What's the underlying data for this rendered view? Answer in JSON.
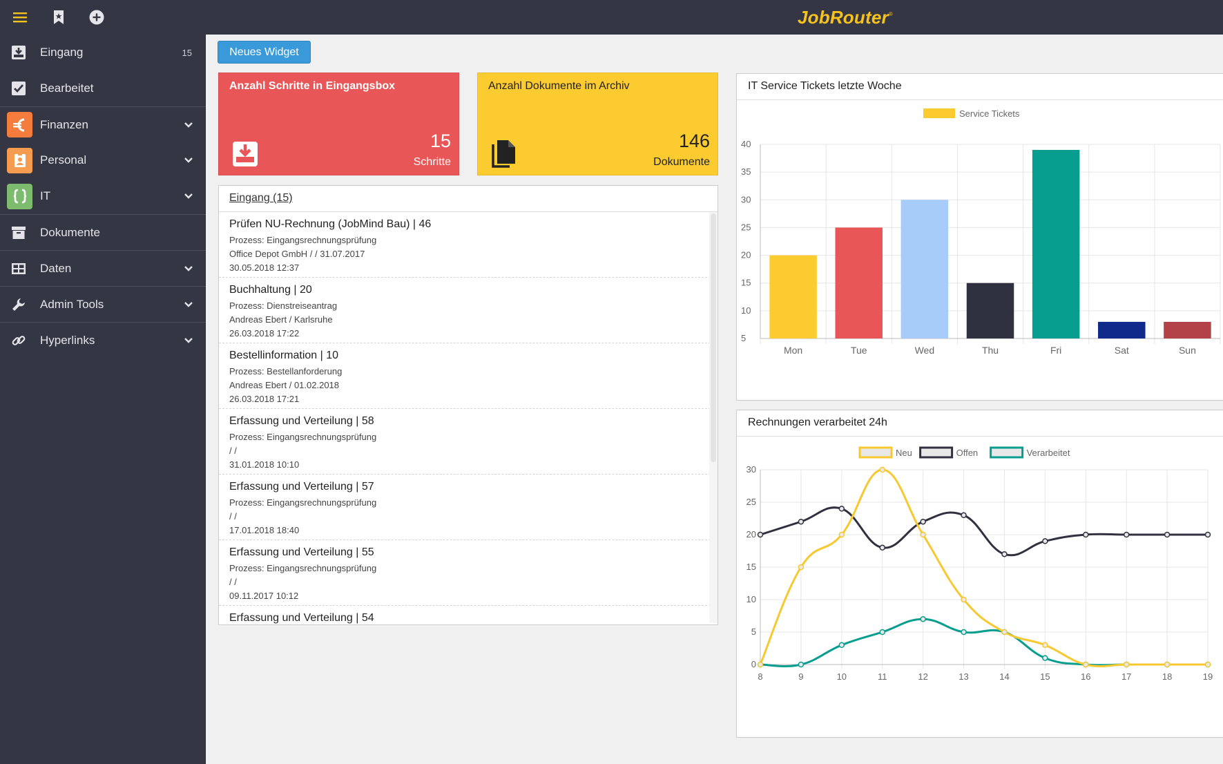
{
  "brand": {
    "name": "JobRouter",
    "mark": "®",
    "color": "#f6c21c"
  },
  "topbar": {
    "icons": [
      "hamburger-icon",
      "bookmark-icon",
      "add-circle-icon"
    ]
  },
  "sidebar": {
    "items": [
      {
        "label": "Eingang",
        "count": "15",
        "icon": "inbox-download-icon"
      },
      {
        "label": "Bearbeitet",
        "icon": "checkbox-checked-icon"
      },
      {
        "label": "Finanzen",
        "icon": "euro-icon",
        "color": "#f47c3c"
      },
      {
        "label": "Personal",
        "icon": "badge-icon",
        "color": "#f59c51"
      },
      {
        "label": "IT",
        "icon": "braces-icon",
        "color": "#7dbb6e"
      },
      {
        "label": "Dokumente",
        "icon": "archive-box-icon"
      },
      {
        "label": "Daten",
        "icon": "table-icon"
      },
      {
        "label": "Admin Tools",
        "icon": "wrench-icon"
      },
      {
        "label": "Hyperlinks",
        "icon": "link-icon"
      }
    ]
  },
  "main": {
    "new_widget_label": "Neues Widget",
    "tiles": [
      {
        "title": "Anzahl Schritte in Eingangsbox",
        "value": "15",
        "unit": "Schritte",
        "color": "#e85657",
        "icon": "inbox-download-icon"
      },
      {
        "title": "Anzahl Dokumente im Archiv",
        "value": "146",
        "unit": "Dokumente",
        "color": "#fccb2f",
        "icon": "documents-icon"
      }
    ],
    "inbox": {
      "title": "Eingang (15)",
      "entries": [
        {
          "title": "Prüfen NU-Rechnung (JobMind Bau) | 46",
          "process": "Prozess: Eingangsrechnungsprüfung",
          "detail": "Office Depot GmbH / / 31.07.2017",
          "date": "30.05.2018 12:37"
        },
        {
          "title": "Buchhaltung | 20",
          "process": "Prozess: Dienstreiseantrag",
          "detail": "Andreas Ebert / Karlsruhe",
          "date": "26.03.2018 17:22"
        },
        {
          "title": "Bestellinformation | 10",
          "process": "Prozess: Bestellanforderung",
          "detail": "Andreas Ebert / 01.02.2018",
          "date": "26.03.2018 17:21"
        },
        {
          "title": "Erfassung und Verteilung | 58",
          "process": "Prozess: Eingangsrechnungsprüfung",
          "detail": "/ /",
          "date": "31.01.2018 10:10"
        },
        {
          "title": "Erfassung und Verteilung | 57",
          "process": "Prozess: Eingangsrechnungsprüfung",
          "detail": "/ /",
          "date": "17.01.2018 18:40"
        },
        {
          "title": "Erfassung und Verteilung | 55",
          "process": "Prozess: Eingangsrechnungsprüfung",
          "detail": "/ /",
          "date": "09.11.2017 10:12"
        },
        {
          "title": "Erfassung und Verteilung | 54",
          "process": "",
          "detail": "",
          "date": ""
        }
      ]
    },
    "panels": {
      "tickets_title": "IT Service Tickets letzte Woche",
      "invoices_title": "Rechnungen verarbeitet 24h"
    }
  },
  "chart_data": [
    {
      "type": "bar",
      "title": "IT Service Tickets letzte Woche",
      "categories": [
        "Mon",
        "Tue",
        "Wed",
        "Thu",
        "Fri",
        "Sat",
        "Sun"
      ],
      "series": [
        {
          "name": "Service Tickets",
          "values": [
            20,
            25,
            30,
            15,
            39,
            8,
            8
          ]
        }
      ],
      "bar_colors": [
        "#fccb2f",
        "#e85657",
        "#a8ccfa",
        "#2f3140",
        "#079e8f",
        "#102a8c",
        "#b24248"
      ],
      "legend_color": "#fccb2f",
      "ylim": [
        5,
        40
      ],
      "yticks": [
        5,
        10,
        15,
        20,
        25,
        30,
        35,
        40
      ],
      "grid": true,
      "legend": "top"
    },
    {
      "type": "line",
      "title": "Rechnungen verarbeitet 24h",
      "x": [
        8,
        9,
        10,
        11,
        12,
        13,
        14,
        15,
        16,
        17,
        18,
        19
      ],
      "series": [
        {
          "name": "Neu",
          "color": "#f7c832",
          "values": [
            0,
            15,
            20,
            30,
            20,
            10,
            5,
            3,
            0,
            0,
            0,
            0
          ]
        },
        {
          "name": "Offen",
          "color": "#2f3140",
          "values": [
            20,
            22,
            24,
            18,
            22,
            23,
            17,
            19,
            20,
            20,
            20,
            20
          ]
        },
        {
          "name": "Verarbeitet",
          "color": "#079e8f",
          "values": [
            0,
            0,
            3,
            5,
            7,
            5,
            5,
            1,
            0,
            0,
            0,
            0
          ]
        }
      ],
      "ylim": [
        0,
        30
      ],
      "yticks": [
        0,
        5,
        10,
        15,
        20,
        25,
        30
      ],
      "grid": true,
      "legend": "top"
    }
  ]
}
